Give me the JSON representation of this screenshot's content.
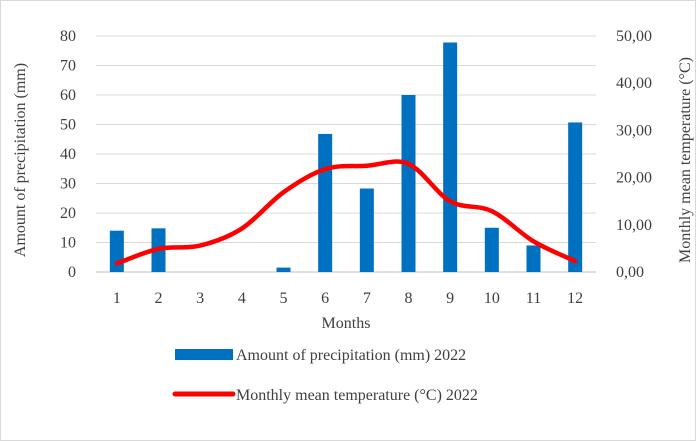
{
  "chart_data": {
    "type": "bar+line",
    "categories": [
      "1",
      "2",
      "3",
      "4",
      "5",
      "6",
      "7",
      "8",
      "9",
      "10",
      "11",
      "12"
    ],
    "xlabel": "Months",
    "ylabel_left": "Amount of precipitation (mm)",
    "ylabel_right": "Monthly mean temperature (°C)",
    "ylim_left": [
      0,
      80
    ],
    "ylim_right": [
      0,
      50
    ],
    "left_ticks": [
      "0",
      "10",
      "20",
      "30",
      "40",
      "50",
      "60",
      "70",
      "80"
    ],
    "right_ticks": [
      "0,00",
      "10,00",
      "20,00",
      "30,00",
      "40,00",
      "50,00"
    ],
    "grid": true,
    "legend_position": "bottom",
    "series": [
      {
        "name": "Amount of precipitation (mm) 2022",
        "type": "bar",
        "axis": "left",
        "color": "#0070c0",
        "values": [
          14,
          14.8,
          0,
          0,
          1.5,
          46.8,
          28.3,
          60,
          77.8,
          15,
          9,
          50.7
        ]
      },
      {
        "name": "Monthly mean temperature (°C) 2022",
        "type": "line",
        "axis": "right",
        "color": "#ff0000",
        "values": [
          1.8,
          4.9,
          5.6,
          9.2,
          16.9,
          21.8,
          22.5,
          22.9,
          15,
          12.9,
          6.5,
          2.3
        ]
      }
    ]
  }
}
